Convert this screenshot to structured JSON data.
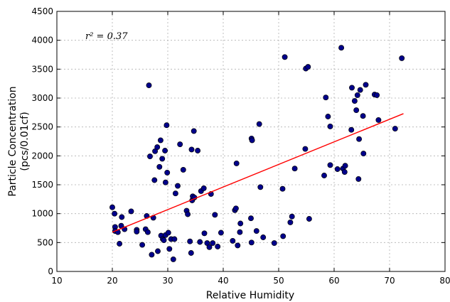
{
  "chart_data": {
    "type": "scatter",
    "xlabel": "Relative Humidity",
    "ylabel_line1": "Particle Concentration",
    "ylabel_line2": "(pcs/0.01cf)",
    "annotation": "r² = 0.37",
    "xlim": [
      10,
      80
    ],
    "ylim": [
      0,
      4500
    ],
    "xticks": [
      10,
      20,
      30,
      40,
      50,
      60,
      70,
      80
    ],
    "yticks": [
      0,
      500,
      1000,
      1500,
      2000,
      2500,
      3000,
      3500,
      4000,
      4500
    ],
    "grid": true,
    "point_color": "#00008b",
    "line_color": "#ff0000",
    "fit_line": {
      "x": [
        20,
        72.5
      ],
      "y": [
        680,
        2730
      ]
    },
    "points": [
      [
        20,
        1110
      ],
      [
        20.4,
        1000
      ],
      [
        20.5,
        770
      ],
      [
        20.5,
        700
      ],
      [
        21,
        680
      ],
      [
        21.3,
        480
      ],
      [
        21.6,
        790
      ],
      [
        21.7,
        940
      ],
      [
        22.2,
        730
      ],
      [
        23.4,
        1040
      ],
      [
        24.4,
        720
      ],
      [
        24.4,
        690
      ],
      [
        25.4,
        460
      ],
      [
        26,
        730
      ],
      [
        26.2,
        960
      ],
      [
        26.4,
        680
      ],
      [
        26.6,
        3220
      ],
      [
        26.8,
        1990
      ],
      [
        27.1,
        290
      ],
      [
        27.4,
        930
      ],
      [
        27.6,
        1580
      ],
      [
        27.7,
        2080
      ],
      [
        28.1,
        2150
      ],
      [
        28.2,
        350
      ],
      [
        28.5,
        1810
      ],
      [
        28.7,
        2270
      ],
      [
        28.8,
        620
      ],
      [
        29,
        1950
      ],
      [
        29.1,
        560
      ],
      [
        29.3,
        540
      ],
      [
        29.5,
        2090
      ],
      [
        29.6,
        1540
      ],
      [
        29.6,
        630
      ],
      [
        29.8,
        2530
      ],
      [
        29.9,
        1710
      ],
      [
        30.1,
        670
      ],
      [
        30.3,
        390
      ],
      [
        30.6,
        560
      ],
      [
        31,
        210
      ],
      [
        31.2,
        560
      ],
      [
        31.4,
        1350
      ],
      [
        31.8,
        1480
      ],
      [
        32.2,
        2200
      ],
      [
        32.8,
        1760
      ],
      [
        33.4,
        1050
      ],
      [
        33.6,
        990
      ],
      [
        34,
        520
      ],
      [
        34.2,
        320
      ],
      [
        34.3,
        2110
      ],
      [
        34.4,
        1230
      ],
      [
        34.5,
        1300
      ],
      [
        34.7,
        2430
      ],
      [
        34.8,
        1280
      ],
      [
        35.4,
        2090
      ],
      [
        35.8,
        510
      ],
      [
        36,
        1390
      ],
      [
        36.5,
        1440
      ],
      [
        36.6,
        660
      ],
      [
        37.1,
        490
      ],
      [
        37.5,
        420
      ],
      [
        37.8,
        1340
      ],
      [
        38.1,
        490
      ],
      [
        38.5,
        980
      ],
      [
        39,
        430
      ],
      [
        39.6,
        670
      ],
      [
        41.7,
        530
      ],
      [
        42.1,
        1060
      ],
      [
        42.3,
        1090
      ],
      [
        42.4,
        1870
      ],
      [
        42.6,
        450
      ],
      [
        43,
        680
      ],
      [
        43.1,
        830
      ],
      [
        45,
        920
      ],
      [
        45.1,
        500
      ],
      [
        45.1,
        2300
      ],
      [
        45.2,
        2270
      ],
      [
        46,
        700
      ],
      [
        46.5,
        2550
      ],
      [
        46.7,
        1460
      ],
      [
        47.2,
        590
      ],
      [
        49.2,
        490
      ],
      [
        50.7,
        1430
      ],
      [
        50.8,
        610
      ],
      [
        51.1,
        3710
      ],
      [
        52.1,
        850
      ],
      [
        52.4,
        950
      ],
      [
        52.9,
        1780
      ],
      [
        54.8,
        2120
      ],
      [
        54.9,
        3510
      ],
      [
        55.3,
        3540
      ],
      [
        55.5,
        910
      ],
      [
        58.2,
        1660
      ],
      [
        58.5,
        3010
      ],
      [
        58.9,
        2680
      ],
      [
        59.3,
        1840
      ],
      [
        59.3,
        2510
      ],
      [
        60.6,
        1770
      ],
      [
        61.3,
        3870
      ],
      [
        61.6,
        1780
      ],
      [
        61.9,
        1720
      ],
      [
        62,
        1830
      ],
      [
        63.1,
        2450
      ],
      [
        63.2,
        3180
      ],
      [
        63.7,
        2950
      ],
      [
        64,
        2790
      ],
      [
        64.2,
        3050
      ],
      [
        64.4,
        1600
      ],
      [
        64.5,
        2290
      ],
      [
        64.7,
        3140
      ],
      [
        65.2,
        2690
      ],
      [
        65.3,
        2040
      ],
      [
        65.7,
        3230
      ],
      [
        67.3,
        3060
      ],
      [
        67.7,
        3050
      ],
      [
        68,
        2620
      ],
      [
        71,
        2470
      ],
      [
        72.2,
        3690
      ]
    ]
  }
}
